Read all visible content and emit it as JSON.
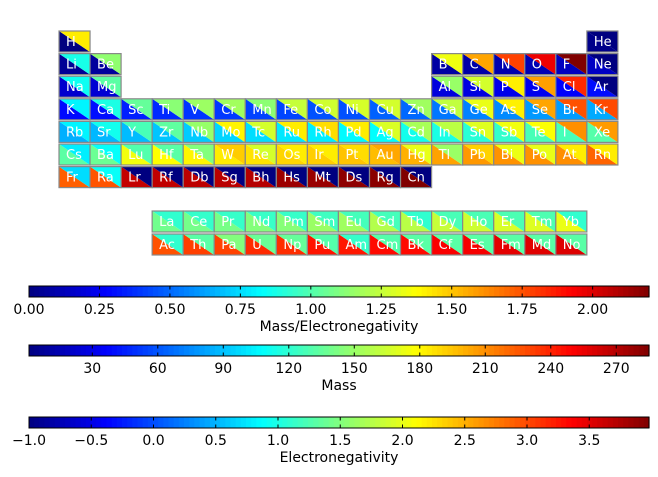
{
  "chart_data": {
    "type": "heatmap",
    "description_of_encoding": "Each element tile is split diagonally: lower-left triangle colored by Mass, upper-right triangle colored by Electronegativity",
    "elements": [
      {
        "symbol": "H",
        "row": 1,
        "col": 1
      },
      {
        "symbol": "He",
        "row": 1,
        "col": 18
      },
      {
        "symbol": "Li",
        "row": 2,
        "col": 1
      },
      {
        "symbol": "Be",
        "row": 2,
        "col": 2
      },
      {
        "symbol": "B",
        "row": 2,
        "col": 13
      },
      {
        "symbol": "C",
        "row": 2,
        "col": 14
      },
      {
        "symbol": "N",
        "row": 2,
        "col": 15
      },
      {
        "symbol": "O",
        "row": 2,
        "col": 16
      },
      {
        "symbol": "F",
        "row": 2,
        "col": 17
      },
      {
        "symbol": "Ne",
        "row": 2,
        "col": 18
      },
      {
        "symbol": "Na",
        "row": 3,
        "col": 1
      },
      {
        "symbol": "Mg",
        "row": 3,
        "col": 2
      },
      {
        "symbol": "Al",
        "row": 3,
        "col": 13
      },
      {
        "symbol": "Si",
        "row": 3,
        "col": 14
      },
      {
        "symbol": "P",
        "row": 3,
        "col": 15
      },
      {
        "symbol": "S",
        "row": 3,
        "col": 16
      },
      {
        "symbol": "Cl",
        "row": 3,
        "col": 17
      },
      {
        "symbol": "Ar",
        "row": 3,
        "col": 18
      },
      {
        "symbol": "K",
        "row": 4,
        "col": 1
      },
      {
        "symbol": "Ca",
        "row": 4,
        "col": 2
      },
      {
        "symbol": "Sc",
        "row": 4,
        "col": 3
      },
      {
        "symbol": "Ti",
        "row": 4,
        "col": 4
      },
      {
        "symbol": "V",
        "row": 4,
        "col": 5
      },
      {
        "symbol": "Cr",
        "row": 4,
        "col": 6
      },
      {
        "symbol": "Mn",
        "row": 4,
        "col": 7
      },
      {
        "symbol": "Fe",
        "row": 4,
        "col": 8
      },
      {
        "symbol": "Co",
        "row": 4,
        "col": 9
      },
      {
        "symbol": "Ni",
        "row": 4,
        "col": 10
      },
      {
        "symbol": "Cu",
        "row": 4,
        "col": 11
      },
      {
        "symbol": "Zn",
        "row": 4,
        "col": 12
      },
      {
        "symbol": "Ga",
        "row": 4,
        "col": 13
      },
      {
        "symbol": "Ge",
        "row": 4,
        "col": 14
      },
      {
        "symbol": "As",
        "row": 4,
        "col": 15
      },
      {
        "symbol": "Se",
        "row": 4,
        "col": 16
      },
      {
        "symbol": "Br",
        "row": 4,
        "col": 17
      },
      {
        "symbol": "Kr",
        "row": 4,
        "col": 18
      },
      {
        "symbol": "Rb",
        "row": 5,
        "col": 1
      },
      {
        "symbol": "Sr",
        "row": 5,
        "col": 2
      },
      {
        "symbol": "Y",
        "row": 5,
        "col": 3
      },
      {
        "symbol": "Zr",
        "row": 5,
        "col": 4
      },
      {
        "symbol": "Nb",
        "row": 5,
        "col": 5
      },
      {
        "symbol": "Mo",
        "row": 5,
        "col": 6
      },
      {
        "symbol": "Tc",
        "row": 5,
        "col": 7
      },
      {
        "symbol": "Ru",
        "row": 5,
        "col": 8
      },
      {
        "symbol": "Rh",
        "row": 5,
        "col": 9
      },
      {
        "symbol": "Pd",
        "row": 5,
        "col": 10
      },
      {
        "symbol": "Ag",
        "row": 5,
        "col": 11
      },
      {
        "symbol": "Cd",
        "row": 5,
        "col": 12
      },
      {
        "symbol": "In",
        "row": 5,
        "col": 13
      },
      {
        "symbol": "Sn",
        "row": 5,
        "col": 14
      },
      {
        "symbol": "Sb",
        "row": 5,
        "col": 15
      },
      {
        "symbol": "Te",
        "row": 5,
        "col": 16
      },
      {
        "symbol": "I",
        "row": 5,
        "col": 17
      },
      {
        "symbol": "Xe",
        "row": 5,
        "col": 18
      },
      {
        "symbol": "Cs",
        "row": 6,
        "col": 1
      },
      {
        "symbol": "Ba",
        "row": 6,
        "col": 2
      },
      {
        "symbol": "Lu",
        "row": 6,
        "col": 3
      },
      {
        "symbol": "Hf",
        "row": 6,
        "col": 4
      },
      {
        "symbol": "Ta",
        "row": 6,
        "col": 5
      },
      {
        "symbol": "W",
        "row": 6,
        "col": 6
      },
      {
        "symbol": "Re",
        "row": 6,
        "col": 7
      },
      {
        "symbol": "Os",
        "row": 6,
        "col": 8
      },
      {
        "symbol": "Ir",
        "row": 6,
        "col": 9
      },
      {
        "symbol": "Pt",
        "row": 6,
        "col": 10
      },
      {
        "symbol": "Au",
        "row": 6,
        "col": 11
      },
      {
        "symbol": "Hg",
        "row": 6,
        "col": 12
      },
      {
        "symbol": "Tl",
        "row": 6,
        "col": 13
      },
      {
        "symbol": "Pb",
        "row": 6,
        "col": 14
      },
      {
        "symbol": "Bi",
        "row": 6,
        "col": 15
      },
      {
        "symbol": "Po",
        "row": 6,
        "col": 16
      },
      {
        "symbol": "At",
        "row": 6,
        "col": 17
      },
      {
        "symbol": "Rn",
        "row": 6,
        "col": 18
      },
      {
        "symbol": "Fr",
        "row": 7,
        "col": 1
      },
      {
        "symbol": "Ra",
        "row": 7,
        "col": 2
      },
      {
        "symbol": "Lr",
        "row": 7,
        "col": 3
      },
      {
        "symbol": "Rf",
        "row": 7,
        "col": 4
      },
      {
        "symbol": "Db",
        "row": 7,
        "col": 5
      },
      {
        "symbol": "Sg",
        "row": 7,
        "col": 6
      },
      {
        "symbol": "Bh",
        "row": 7,
        "col": 7
      },
      {
        "symbol": "Hs",
        "row": 7,
        "col": 8
      },
      {
        "symbol": "Mt",
        "row": 7,
        "col": 9
      },
      {
        "symbol": "Ds",
        "row": 7,
        "col": 10
      },
      {
        "symbol": "Rg",
        "row": 7,
        "col": 11
      },
      {
        "symbol": "Cn",
        "row": 7,
        "col": 12
      },
      {
        "symbol": "La",
        "row": 9,
        "col": 4
      },
      {
        "symbol": "Ce",
        "row": 9,
        "col": 5
      },
      {
        "symbol": "Pr",
        "row": 9,
        "col": 6
      },
      {
        "symbol": "Nd",
        "row": 9,
        "col": 7
      },
      {
        "symbol": "Pm",
        "row": 9,
        "col": 8
      },
      {
        "symbol": "Sm",
        "row": 9,
        "col": 9
      },
      {
        "symbol": "Eu",
        "row": 9,
        "col": 10
      },
      {
        "symbol": "Gd",
        "row": 9,
        "col": 11
      },
      {
        "symbol": "Tb",
        "row": 9,
        "col": 12
      },
      {
        "symbol": "Dy",
        "row": 9,
        "col": 13
      },
      {
        "symbol": "Ho",
        "row": 9,
        "col": 14
      },
      {
        "symbol": "Er",
        "row": 9,
        "col": 15
      },
      {
        "symbol": "Tm",
        "row": 9,
        "col": 16
      },
      {
        "symbol": "Yb",
        "row": 9,
        "col": 17
      },
      {
        "symbol": "Ac",
        "row": 10,
        "col": 4
      },
      {
        "symbol": "Th",
        "row": 10,
        "col": 5
      },
      {
        "symbol": "Pa",
        "row": 10,
        "col": 6
      },
      {
        "symbol": "U",
        "row": 10,
        "col": 7
      },
      {
        "symbol": "Np",
        "row": 10,
        "col": 8
      },
      {
        "symbol": "Pu",
        "row": 10,
        "col": 9
      },
      {
        "symbol": "Am",
        "row": 10,
        "col": 10
      },
      {
        "symbol": "Cm",
        "row": 10,
        "col": 11
      },
      {
        "symbol": "Bk",
        "row": 10,
        "col": 12
      },
      {
        "symbol": "Cf",
        "row": 10,
        "col": 13
      },
      {
        "symbol": "Es",
        "row": 10,
        "col": 14
      },
      {
        "symbol": "Fm",
        "row": 10,
        "col": 15
      },
      {
        "symbol": "Md",
        "row": 10,
        "col": 16
      },
      {
        "symbol": "No",
        "row": 10,
        "col": 17
      }
    ],
    "mass": {
      "H": 1.008,
      "He": 4.003,
      "Li": 6.94,
      "Be": 9.012,
      "B": 10.81,
      "C": 12.011,
      "N": 14.007,
      "O": 15.999,
      "F": 18.998,
      "Ne": 20.18,
      "Na": 22.99,
      "Mg": 24.305,
      "Al": 26.98,
      "Si": 28.085,
      "P": 30.97,
      "S": 32.06,
      "Cl": 35.45,
      "Ar": 39.95,
      "K": 39.1,
      "Ca": 40.08,
      "Sc": 44.96,
      "Ti": 47.87,
      "V": 50.94,
      "Cr": 52.0,
      "Mn": 54.94,
      "Fe": 55.85,
      "Co": 58.93,
      "Ni": 58.69,
      "Cu": 63.55,
      "Zn": 65.38,
      "Ga": 69.72,
      "Ge": 72.63,
      "As": 74.92,
      "Se": 78.97,
      "Br": 79.9,
      "Kr": 83.8,
      "Rb": 85.47,
      "Sr": 87.62,
      "Y": 88.91,
      "Zr": 91.22,
      "Nb": 92.91,
      "Mo": 95.95,
      "Tc": 98,
      "Ru": 101.07,
      "Rh": 102.91,
      "Pd": 106.42,
      "Ag": 107.87,
      "Cd": 112.41,
      "In": 114.82,
      "Sn": 118.71,
      "Sb": 121.76,
      "Te": 127.6,
      "I": 126.9,
      "Xe": 131.29,
      "Cs": 132.91,
      "Ba": 137.33,
      "La": 138.91,
      "Ce": 140.12,
      "Pr": 140.91,
      "Nd": 144.24,
      "Pm": 145,
      "Sm": 150.36,
      "Eu": 151.96,
      "Gd": 157.25,
      "Tb": 158.93,
      "Dy": 162.5,
      "Ho": 164.93,
      "Er": 167.26,
      "Tm": 168.93,
      "Yb": 173.05,
      "Lu": 174.97,
      "Hf": 178.49,
      "Ta": 180.95,
      "W": 183.84,
      "Re": 186.21,
      "Os": 190.23,
      "Ir": 192.22,
      "Pt": 195.08,
      "Au": 196.97,
      "Hg": 200.59,
      "Tl": 204.38,
      "Pb": 207.2,
      "Bi": 208.98,
      "Po": 209,
      "At": 210,
      "Rn": 222,
      "Fr": 223,
      "Ra": 226,
      "Ac": 227,
      "Th": 232.04,
      "Pa": 231.04,
      "U": 238.03,
      "Np": 237,
      "Pu": 244,
      "Am": 243,
      "Cm": 247,
      "Bk": 247,
      "Cf": 251,
      "Es": 252,
      "Fm": 257,
      "Md": 258,
      "No": 259,
      "Lr": 266,
      "Rf": 267,
      "Db": 268,
      "Sg": 269,
      "Bh": 270,
      "Hs": 277,
      "Mt": 278,
      "Ds": 281,
      "Rg": 282,
      "Cn": 285
    },
    "electronegativity": {
      "H": 2.2,
      "He": -1,
      "Li": 0.98,
      "Be": 1.57,
      "B": 2.04,
      "C": 2.55,
      "N": 3.04,
      "O": 3.44,
      "F": 3.98,
      "Ne": -1,
      "Na": 0.93,
      "Mg": 1.31,
      "Al": 1.61,
      "Si": 1.9,
      "P": 2.19,
      "S": 2.58,
      "Cl": 3.16,
      "Ar": -1,
      "K": 0.82,
      "Ca": 1.0,
      "Sc": 1.36,
      "Ti": 1.54,
      "V": 1.63,
      "Cr": 1.66,
      "Mn": 1.55,
      "Fe": 1.83,
      "Co": 1.88,
      "Ni": 1.91,
      "Cu": 1.9,
      "Zn": 1.65,
      "Ga": 1.81,
      "Ge": 2.01,
      "As": 2.18,
      "Se": 2.55,
      "Br": 2.96,
      "Kr": 3.0,
      "Rb": 0.82,
      "Sr": 0.95,
      "Y": 1.22,
      "Zr": 1.33,
      "Nb": 1.6,
      "Mo": 2.16,
      "Tc": 1.9,
      "Ru": 2.2,
      "Rh": 2.28,
      "Pd": 2.2,
      "Ag": 1.93,
      "Cd": 1.69,
      "In": 1.78,
      "Sn": 1.96,
      "Sb": 2.05,
      "Te": 2.1,
      "I": 2.66,
      "Xe": 2.6,
      "Cs": 0.79,
      "Ba": 0.89,
      "La": 1.1,
      "Ce": 1.12,
      "Pr": 1.13,
      "Nd": 1.14,
      "Pm": 1.13,
      "Sm": 1.17,
      "Eu": 1.2,
      "Gd": 1.2,
      "Tb": 1.1,
      "Dy": 1.22,
      "Ho": 1.23,
      "Er": 1.24,
      "Tm": 1.25,
      "Yb": 1.1,
      "Lu": 1.27,
      "Hf": 1.3,
      "Ta": 1.5,
      "W": 2.36,
      "Re": 1.9,
      "Os": 2.2,
      "Ir": 2.2,
      "Pt": 2.28,
      "Au": 2.54,
      "Hg": 2.0,
      "Tl": 1.62,
      "Pb": 2.33,
      "Bi": 2.02,
      "Po": 2.0,
      "At": 2.2,
      "Rn": 2.2,
      "Fr": 0.7,
      "Ra": 0.9,
      "Ac": 1.1,
      "Th": 1.3,
      "Pa": 1.5,
      "U": 1.38,
      "Np": 1.36,
      "Pu": 1.28,
      "Am": 1.13,
      "Cm": 1.28,
      "Bk": 1.3,
      "Cf": 1.3,
      "Es": 1.3,
      "Fm": 1.3,
      "Md": 1.3,
      "No": 1.3,
      "Lr": -1,
      "Rf": -1,
      "Db": -1,
      "Sg": -1,
      "Bh": -1,
      "Hs": -1,
      "Mt": -1,
      "Ds": -1,
      "Rg": -1,
      "Cn": -1
    },
    "colorbars": [
      {
        "name": "mass-electronegativity-colorbar",
        "label": "Mass/Electronegativity",
        "range": [
          0,
          2.2
        ],
        "ticks": [
          0,
          0.25,
          0.5,
          0.75,
          1.0,
          1.25,
          1.5,
          1.75,
          2.0
        ],
        "tick_labels": [
          "0.00",
          "0.25",
          "0.50",
          "0.75",
          "1.00",
          "1.25",
          "1.50",
          "1.75",
          "2.00"
        ]
      },
      {
        "name": "mass-colorbar",
        "label": "Mass",
        "range": [
          1.008,
          285
        ],
        "ticks": [
          30,
          60,
          90,
          120,
          150,
          180,
          210,
          240,
          270
        ],
        "tick_labels": [
          "30",
          "60",
          "90",
          "120",
          "150",
          "180",
          "210",
          "240",
          "270"
        ]
      },
      {
        "name": "electronegativity-colorbar",
        "label": "Electronegativity",
        "range": [
          -1,
          3.98
        ],
        "ticks": [
          -1,
          -0.5,
          0,
          0.5,
          1.0,
          1.5,
          2.0,
          2.5,
          3.0,
          3.5
        ],
        "tick_labels": [
          "−1.0",
          "−0.5",
          "0.0",
          "0.5",
          "1.0",
          "1.5",
          "2.0",
          "2.5",
          "3.0",
          "3.5"
        ]
      }
    ],
    "colormap": "jet",
    "colors": {
      "tile_border": "#888888",
      "symbol_text": "#ffffff",
      "text": "#000000"
    }
  }
}
